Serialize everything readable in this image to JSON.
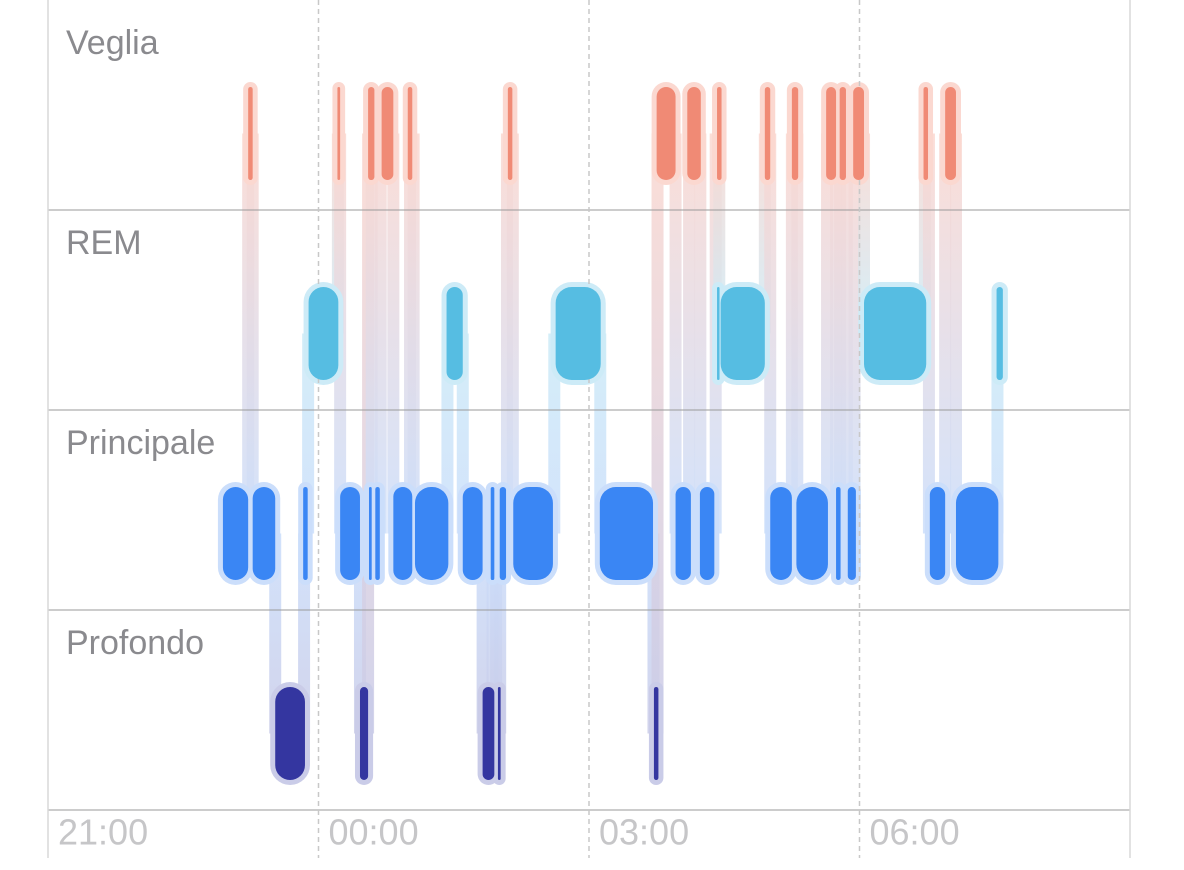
{
  "chart_data": {
    "type": "hypnogram",
    "xlim": [
      21,
      33
    ],
    "xticks": [
      {
        "value": 21,
        "label": "21:00"
      },
      {
        "value": 24,
        "label": "00:00"
      },
      {
        "value": 27,
        "label": "03:00"
      },
      {
        "value": 30,
        "label": "06:00"
      }
    ],
    "series": [
      {
        "name": "Veglia",
        "color": "#f08a75",
        "start": [
          23.22,
          24.21,
          24.55,
          24.7,
          24.99,
          26.1,
          27.75,
          28.09,
          28.42,
          28.95,
          29.25,
          29.63,
          29.78,
          29.93,
          30.71,
          30.95
        ],
        "end": [
          23.27,
          24.24,
          24.62,
          24.83,
          25.04,
          26.15,
          27.96,
          28.24,
          28.47,
          29.01,
          29.32,
          29.74,
          29.85,
          30.05,
          30.76,
          31.07
        ]
      },
      {
        "name": "REM",
        "color": "#56bde2",
        "start": [
          23.89,
          25.42,
          26.63,
          28.42,
          28.46,
          30.05,
          31.52
        ],
        "end": [
          24.22,
          25.6,
          27.13,
          28.44,
          28.95,
          30.74,
          31.59
        ]
      },
      {
        "name": "Principale",
        "color": "#3a86f4",
        "start": [
          22.94,
          23.27,
          23.83,
          24.24,
          24.56,
          24.63,
          24.83,
          25.07,
          25.6,
          25.91,
          26.01,
          26.16,
          27.12,
          27.96,
          28.23,
          29.01,
          29.3,
          29.74,
          29.87,
          30.78,
          31.07
        ],
        "end": [
          23.22,
          23.52,
          23.88,
          24.46,
          24.59,
          24.68,
          25.04,
          25.44,
          25.82,
          25.95,
          26.08,
          26.6,
          27.71,
          28.13,
          28.39,
          29.25,
          29.65,
          29.79,
          29.96,
          30.95,
          31.54
        ]
      },
      {
        "name": "Profondo",
        "color": "#3436a0",
        "start": [
          23.52,
          24.46,
          25.82,
          25.99,
          27.72
        ],
        "end": [
          23.85,
          24.55,
          25.95,
          26.02,
          27.77
        ]
      }
    ]
  }
}
